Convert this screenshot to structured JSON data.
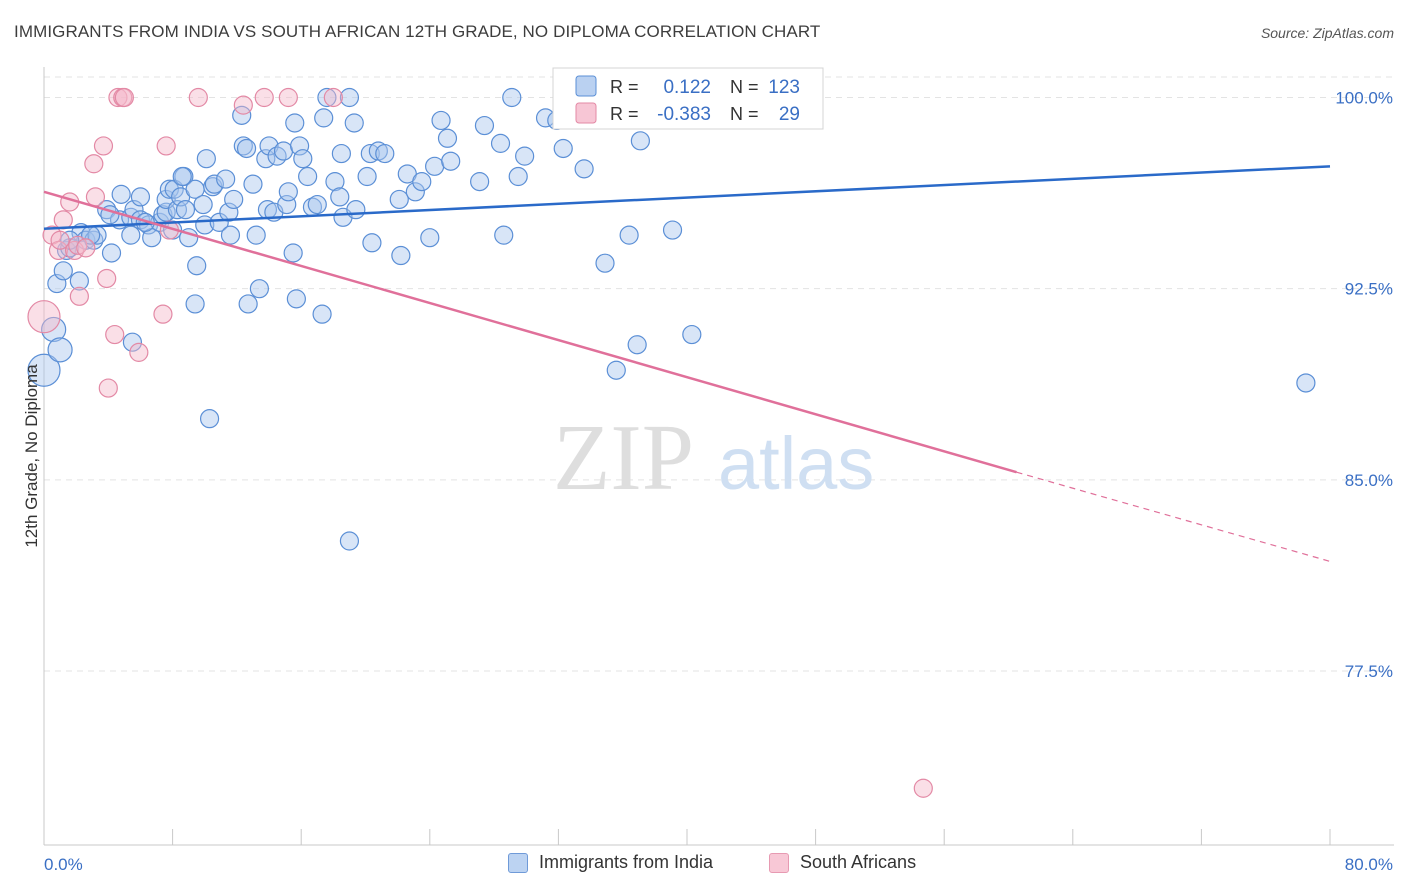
{
  "title": "IMMIGRANTS FROM INDIA VS SOUTH AFRICAN 12TH GRADE, NO DIPLOMA CORRELATION CHART",
  "source": "Source: ZipAtlas.com",
  "watermark": {
    "zip": "ZIP",
    "atlas": "atlas"
  },
  "legend_stats": [
    {
      "r_label": "R =",
      "r_value": "0.122",
      "n_label": "N =",
      "n_value": "123"
    },
    {
      "r_label": "R =",
      "r_value": "-0.383",
      "n_label": "N =",
      "n_value": "29"
    }
  ],
  "legend_bottom": [
    {
      "label": "Immigrants from India"
    },
    {
      "label": "South Africans"
    }
  ],
  "colors": {
    "india_fill": "#a9c6ee",
    "india_stroke": "#5b8fd6",
    "india_line": "#2a6ac9",
    "sa_fill": "#f5b8ca",
    "sa_stroke": "#e389a5",
    "sa_line": "#e0709a",
    "value_text": "#3a6fc4",
    "grid": "#e3e3e3"
  },
  "chart_data": {
    "type": "scatter",
    "title": "IMMIGRANTS FROM INDIA VS SOUTH AFRICAN 12TH GRADE, NO DIPLOMA CORRELATION CHART",
    "xlabel": "",
    "ylabel": "12th Grade, No Diploma",
    "xlim": [
      0,
      80
    ],
    "ylim": [
      70,
      101.3
    ],
    "x_tick_labels": [
      "0.0%",
      "80.0%"
    ],
    "y_ticks": [
      77.5,
      85.0,
      92.5,
      100.0
    ],
    "y_tick_labels": [
      "77.5%",
      "85.0%",
      "92.5%",
      "100.0%"
    ],
    "grid": true,
    "series": [
      {
        "name": "Immigrants from India",
        "r": 0.122,
        "n": 123,
        "trend": {
          "x": [
            0,
            80
          ],
          "y": [
            94.85,
            97.3
          ]
        },
        "points": [
          [
            0.0,
            89.3
          ],
          [
            0.6,
            90.9
          ],
          [
            0.8,
            92.7
          ],
          [
            1.0,
            90.1
          ],
          [
            1.2,
            93.2
          ],
          [
            1.4,
            94.0
          ],
          [
            1.6,
            94.1
          ],
          [
            2.2,
            92.8
          ],
          [
            2.3,
            94.7
          ],
          [
            2.6,
            94.4
          ],
          [
            3.1,
            94.4
          ],
          [
            3.3,
            94.6
          ],
          [
            3.9,
            95.6
          ],
          [
            4.2,
            93.9
          ],
          [
            4.7,
            95.2
          ],
          [
            4.8,
            96.2
          ],
          [
            5.4,
            95.3
          ],
          [
            5.4,
            94.6
          ],
          [
            5.5,
            90.4
          ],
          [
            5.6,
            95.6
          ],
          [
            6.0,
            96.1
          ],
          [
            6.0,
            95.2
          ],
          [
            6.5,
            95.0
          ],
          [
            6.7,
            94.5
          ],
          [
            7.2,
            95.1
          ],
          [
            7.4,
            95.4
          ],
          [
            7.6,
            95.5
          ],
          [
            7.6,
            96.0
          ],
          [
            7.8,
            96.4
          ],
          [
            8.0,
            94.8
          ],
          [
            8.1,
            96.4
          ],
          [
            8.3,
            95.6
          ],
          [
            8.5,
            96.1
          ],
          [
            8.7,
            96.9
          ],
          [
            8.8,
            95.6
          ],
          [
            9.0,
            94.5
          ],
          [
            9.4,
            96.4
          ],
          [
            9.4,
            91.9
          ],
          [
            9.5,
            93.4
          ],
          [
            10.0,
            95.0
          ],
          [
            10.1,
            97.6
          ],
          [
            10.3,
            87.4
          ],
          [
            10.5,
            96.5
          ],
          [
            10.6,
            96.6
          ],
          [
            10.9,
            95.1
          ],
          [
            11.3,
            96.8
          ],
          [
            11.5,
            95.5
          ],
          [
            11.6,
            94.6
          ],
          [
            11.8,
            96.0
          ],
          [
            12.3,
            99.3
          ],
          [
            12.4,
            98.1
          ],
          [
            12.6,
            98.0
          ],
          [
            12.7,
            91.9
          ],
          [
            13.0,
            96.6
          ],
          [
            13.2,
            94.6
          ],
          [
            13.4,
            92.5
          ],
          [
            13.8,
            97.6
          ],
          [
            13.9,
            95.6
          ],
          [
            14.0,
            98.1
          ],
          [
            14.3,
            95.5
          ],
          [
            14.5,
            97.7
          ],
          [
            14.9,
            97.9
          ],
          [
            15.1,
            95.8
          ],
          [
            15.2,
            96.3
          ],
          [
            15.5,
            93.9
          ],
          [
            15.7,
            92.1
          ],
          [
            15.9,
            98.1
          ],
          [
            16.1,
            97.6
          ],
          [
            16.4,
            96.9
          ],
          [
            16.7,
            95.7
          ],
          [
            17.0,
            95.8
          ],
          [
            17.3,
            91.5
          ],
          [
            17.4,
            99.2
          ],
          [
            17.6,
            100.0
          ],
          [
            18.1,
            96.7
          ],
          [
            18.4,
            96.1
          ],
          [
            18.5,
            97.8
          ],
          [
            18.6,
            95.3
          ],
          [
            19.0,
            100.0
          ],
          [
            19.3,
            99.0
          ],
          [
            19.4,
            95.6
          ],
          [
            20.1,
            96.9
          ],
          [
            20.3,
            97.8
          ],
          [
            20.4,
            94.3
          ],
          [
            20.8,
            97.9
          ],
          [
            21.2,
            97.8
          ],
          [
            22.1,
            96.0
          ],
          [
            22.2,
            93.8
          ],
          [
            22.6,
            97.0
          ],
          [
            23.1,
            96.3
          ],
          [
            23.5,
            96.7
          ],
          [
            24.0,
            94.5
          ],
          [
            24.3,
            97.3
          ],
          [
            24.7,
            99.1
          ],
          [
            25.1,
            98.4
          ],
          [
            25.3,
            97.5
          ],
          [
            27.1,
            96.7
          ],
          [
            27.4,
            98.9
          ],
          [
            28.4,
            98.2
          ],
          [
            28.6,
            94.6
          ],
          [
            29.1,
            100.0
          ],
          [
            29.5,
            96.9
          ],
          [
            29.9,
            97.7
          ],
          [
            31.2,
            99.2
          ],
          [
            31.9,
            99.1
          ],
          [
            32.3,
            98.0
          ],
          [
            33.6,
            97.2
          ],
          [
            34.9,
            93.5
          ],
          [
            35.6,
            89.3
          ],
          [
            36.4,
            94.6
          ],
          [
            36.9,
            90.3
          ],
          [
            37.1,
            98.3
          ],
          [
            39.1,
            94.8
          ],
          [
            40.3,
            90.7
          ],
          [
            78.5,
            88.8
          ],
          [
            19.0,
            82.6
          ],
          [
            1.6,
            94.4
          ],
          [
            6.3,
            95.1
          ],
          [
            9.9,
            95.8
          ],
          [
            15.6,
            99.0
          ],
          [
            8.6,
            96.9
          ],
          [
            4.1,
            95.4
          ],
          [
            2.9,
            94.6
          ]
        ]
      },
      {
        "name": "South Africans",
        "r": -0.383,
        "n": 29,
        "trend": {
          "x": [
            0,
            60.5
          ],
          "y": [
            96.3,
            85.3
          ]
        },
        "trend_dashed": {
          "x": [
            60.5,
            80
          ],
          "y": [
            85.3,
            81.8
          ]
        },
        "points": [
          [
            0.0,
            91.4
          ],
          [
            0.5,
            94.6
          ],
          [
            0.9,
            94.0
          ],
          [
            1.2,
            95.2
          ],
          [
            1.6,
            95.9
          ],
          [
            1.9,
            94.0
          ],
          [
            2.1,
            94.2
          ],
          [
            2.2,
            92.2
          ],
          [
            3.1,
            97.4
          ],
          [
            3.2,
            96.1
          ],
          [
            3.7,
            98.1
          ],
          [
            3.9,
            92.9
          ],
          [
            4.4,
            90.7
          ],
          [
            4.6,
            100.0
          ],
          [
            4.9,
            100.0
          ],
          [
            5.0,
            100.0
          ],
          [
            5.9,
            90.0
          ],
          [
            7.4,
            91.5
          ],
          [
            7.6,
            98.1
          ],
          [
            7.8,
            94.8
          ],
          [
            9.6,
            100.0
          ],
          [
            12.4,
            99.7
          ],
          [
            13.7,
            100.0
          ],
          [
            15.2,
            100.0
          ],
          [
            18.0,
            100.0
          ],
          [
            4.0,
            88.6
          ],
          [
            54.7,
            72.9
          ],
          [
            1.0,
            94.4
          ],
          [
            2.6,
            94.1
          ]
        ]
      }
    ]
  }
}
